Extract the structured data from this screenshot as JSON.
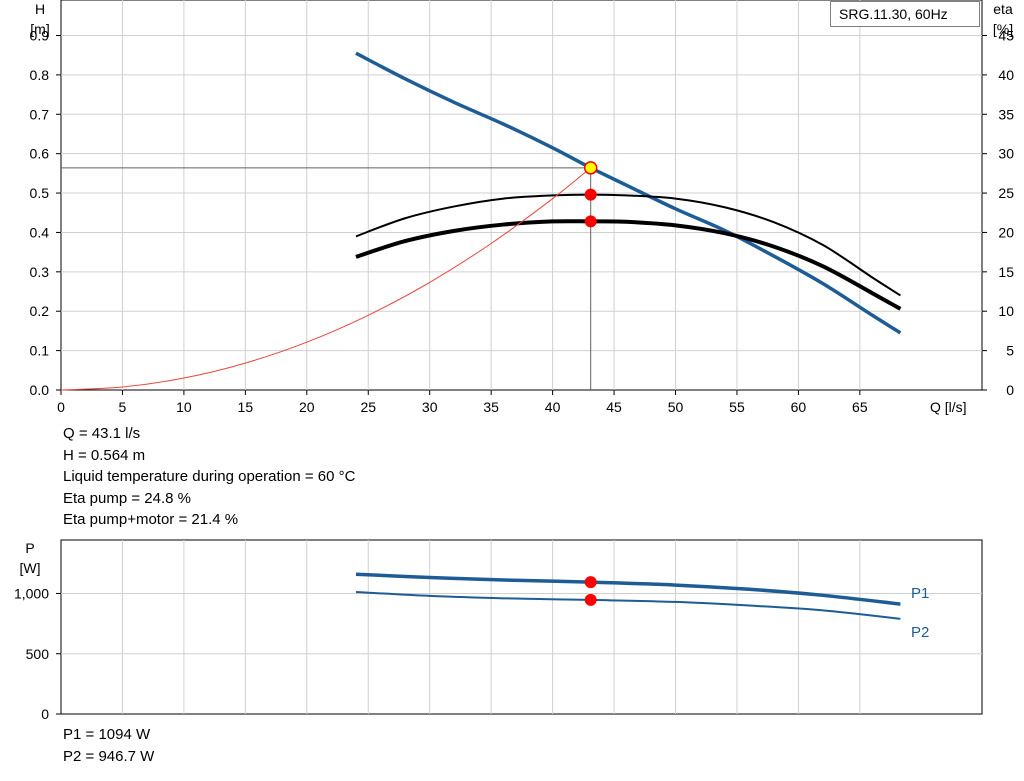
{
  "legend_label": "SRG.11.30, 60Hz",
  "info_top": [
    "Q = 43.1 l/s",
    "H = 0.564 m",
    "Liquid temperature during operation = 60 °C",
    "Eta pump = 24.8 %",
    "Eta pump+motor = 21.4 %"
  ],
  "info_bottom": [
    "P1 = 1094 W",
    "P2 = 946.7 W"
  ],
  "colors": {
    "curve_blue": "#1d5c95",
    "system_red": "#e8473c",
    "marker_red": "#ff0000",
    "marker_yellow": "#ffff00",
    "grid": "#d0d0d0",
    "axis": "#000000"
  },
  "chart_data": [
    {
      "type": "line",
      "y_axis_left": {
        "label": "H",
        "unit": "[m]",
        "range": [
          0,
          0.9
        ],
        "ticks": [
          "0.0",
          "0.1",
          "0.2",
          "0.3",
          "0.4",
          "0.5",
          "0.6",
          "0.7",
          "0.8",
          "0.9"
        ]
      },
      "y_axis_right": {
        "label": "eta",
        "unit": "[%]",
        "range": [
          0,
          45
        ],
        "ticks": [
          "0",
          "5",
          "10",
          "15",
          "20",
          "25",
          "30",
          "35",
          "40",
          "45"
        ]
      },
      "x_axis": {
        "label": "Q [l/s]",
        "range": [
          0,
          68
        ],
        "ticks": [
          "0",
          "5",
          "10",
          "15",
          "20",
          "25",
          "30",
          "35",
          "40",
          "45",
          "50",
          "55",
          "60",
          "65"
        ]
      },
      "grid": true,
      "operating_point": {
        "Q": 43.1,
        "H": 0.564,
        "eta_pump": 24.8,
        "eta_pump_motor": 21.4
      },
      "series": [
        {
          "axis": "left",
          "style": "blue-thick",
          "x": [
            24,
            28,
            32,
            36,
            40,
            43.1,
            46,
            50,
            54,
            58,
            62,
            66,
            68.3
          ],
          "y": [
            0.855,
            0.79,
            0.73,
            0.675,
            0.615,
            0.564,
            0.52,
            0.46,
            0.405,
            0.34,
            0.27,
            0.19,
            0.145
          ]
        },
        {
          "axis": "right",
          "style": "black-thin",
          "x": [
            24,
            28,
            32,
            36,
            40,
            43.1,
            46,
            50,
            54,
            58,
            62,
            66,
            68.3
          ],
          "y": [
            19.5,
            21.8,
            23.3,
            24.3,
            24.7,
            24.8,
            24.7,
            24.3,
            23.2,
            21.3,
            18.4,
            14.3,
            12.0
          ]
        },
        {
          "axis": "right",
          "style": "black-thick",
          "x": [
            24,
            28,
            32,
            36,
            40,
            43.1,
            46,
            50,
            54,
            58,
            62,
            66,
            68.3
          ],
          "y": [
            16.9,
            18.9,
            20.2,
            21.0,
            21.4,
            21.4,
            21.35,
            20.9,
            19.9,
            18.2,
            15.7,
            12.3,
            10.3
          ]
        },
        {
          "axis": "left",
          "style": "red-thin",
          "x": [
            0,
            5,
            10,
            15,
            20,
            25,
            30,
            35,
            40,
            43.1
          ],
          "y": [
            0,
            0.0076,
            0.0304,
            0.0683,
            0.1214,
            0.1897,
            0.2732,
            0.3719,
            0.4857,
            0.564
          ]
        }
      ],
      "markers": [
        {
          "axis": "left",
          "x": 43.1,
          "y": 0.564,
          "style": "yellow"
        },
        {
          "axis": "right",
          "x": 43.1,
          "y": 24.8,
          "style": "red"
        },
        {
          "axis": "right",
          "x": 43.1,
          "y": 21.4,
          "style": "red"
        }
      ]
    },
    {
      "type": "line",
      "y_axis_left": {
        "label": "P",
        "unit": "[W]",
        "range": [
          0,
          1200
        ],
        "ticks": [
          "0",
          "500",
          "1,000"
        ],
        "tick_values": [
          0,
          500,
          1000
        ]
      },
      "x_axis": {
        "range": [
          0,
          68
        ],
        "tick_values": [
          0,
          5,
          10,
          15,
          20,
          25,
          30,
          35,
          40,
          45,
          50,
          55,
          60,
          65
        ]
      },
      "grid": true,
      "series": [
        {
          "name": "P1",
          "style": "blue-thick",
          "x": [
            24,
            30,
            36,
            43.1,
            50,
            56,
            62,
            68.3
          ],
          "y": [
            1160,
            1133,
            1112,
            1094,
            1070,
            1035,
            985,
            912
          ]
        },
        {
          "name": "P2",
          "style": "blue-thin",
          "x": [
            24,
            30,
            36,
            43.1,
            50,
            56,
            62,
            68.3
          ],
          "y": [
            1012,
            980,
            960,
            946.7,
            930,
            900,
            860,
            790
          ]
        }
      ],
      "markers": [
        {
          "x": 43.1,
          "y": 1094,
          "style": "red"
        },
        {
          "x": 43.1,
          "y": 946.7,
          "style": "red"
        }
      ]
    }
  ]
}
